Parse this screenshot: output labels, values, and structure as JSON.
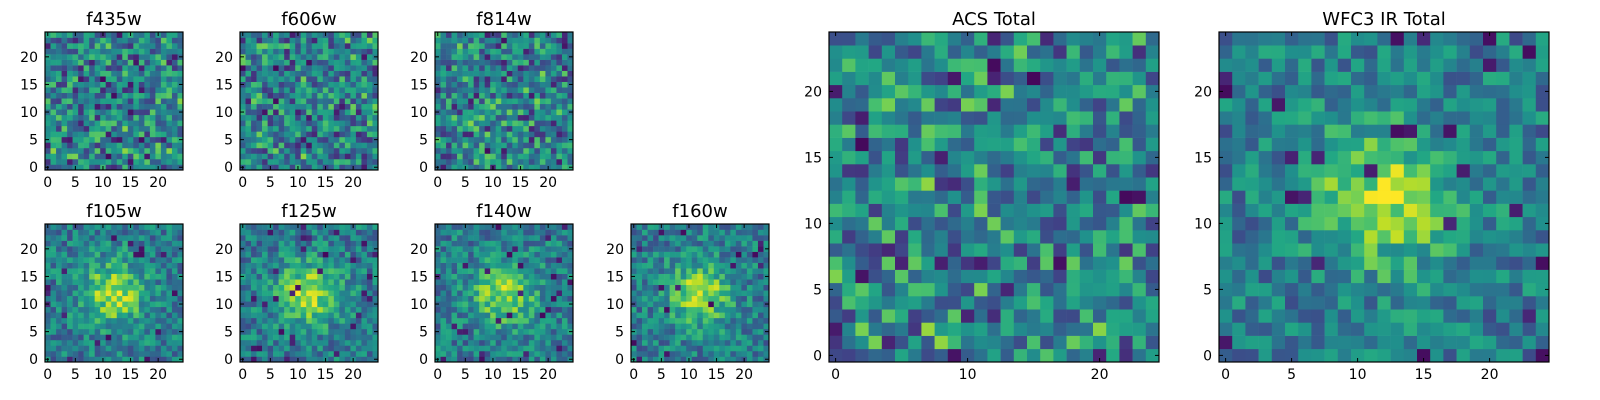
{
  "chart_data": [
    {
      "type": "heatmap",
      "title": "f435w",
      "grid_size": 25,
      "structure": "noise",
      "xticks": [
        "0",
        "5",
        "10",
        "15",
        "20"
      ],
      "yticks": [
        "0",
        "5",
        "10",
        "15",
        "20"
      ],
      "xlim": [
        0,
        25
      ],
      "ylim": [
        0,
        25
      ],
      "colormap": "viridis",
      "seed": 11
    },
    {
      "type": "heatmap",
      "title": "f606w",
      "grid_size": 25,
      "structure": "noise",
      "xticks": [
        "0",
        "5",
        "10",
        "15",
        "20"
      ],
      "yticks": [
        "0",
        "5",
        "10",
        "15",
        "20"
      ],
      "xlim": [
        0,
        25
      ],
      "ylim": [
        0,
        25
      ],
      "colormap": "viridis",
      "seed": 23
    },
    {
      "type": "heatmap",
      "title": "f814w",
      "grid_size": 25,
      "structure": "noise",
      "xticks": [
        "0",
        "5",
        "10",
        "15",
        "20"
      ],
      "yticks": [
        "0",
        "5",
        "10",
        "15",
        "20"
      ],
      "xlim": [
        0,
        25
      ],
      "ylim": [
        0,
        25
      ],
      "colormap": "viridis",
      "seed": 37
    },
    {
      "type": "heatmap",
      "title": "f105w",
      "grid_size": 25,
      "structure": "central-source",
      "xticks": [
        "0",
        "5",
        "10",
        "15",
        "20"
      ],
      "yticks": [
        "0",
        "5",
        "10",
        "15",
        "20"
      ],
      "xlim": [
        0,
        25
      ],
      "ylim": [
        0,
        25
      ],
      "colormap": "viridis",
      "seed": 41
    },
    {
      "type": "heatmap",
      "title": "f125w",
      "grid_size": 25,
      "structure": "central-source",
      "xticks": [
        "0",
        "5",
        "10",
        "15",
        "20"
      ],
      "yticks": [
        "0",
        "5",
        "10",
        "15",
        "20"
      ],
      "xlim": [
        0,
        25
      ],
      "ylim": [
        0,
        25
      ],
      "colormap": "viridis",
      "seed": 53
    },
    {
      "type": "heatmap",
      "title": "f140w",
      "grid_size": 25,
      "structure": "central-source",
      "xticks": [
        "0",
        "5",
        "10",
        "15",
        "20"
      ],
      "yticks": [
        "0",
        "5",
        "10",
        "15",
        "20"
      ],
      "xlim": [
        0,
        25
      ],
      "ylim": [
        0,
        25
      ],
      "colormap": "viridis",
      "seed": 67
    },
    {
      "type": "heatmap",
      "title": "f160w",
      "grid_size": 25,
      "structure": "central-source",
      "xticks": [
        "0",
        "5",
        "10",
        "15",
        "20"
      ],
      "yticks": [
        "0",
        "5",
        "10",
        "15",
        "20"
      ],
      "xlim": [
        0,
        25
      ],
      "ylim": [
        0,
        25
      ],
      "colormap": "viridis",
      "seed": 79
    },
    {
      "type": "heatmap",
      "title": "ACS Total",
      "grid_size": 25,
      "structure": "noise",
      "xticks": [
        "0",
        "10",
        "20"
      ],
      "yticks": [
        "0",
        "5",
        "10",
        "15",
        "20"
      ],
      "xlim": [
        0,
        25
      ],
      "ylim": [
        0,
        25
      ],
      "colormap": "viridis",
      "seed": 97
    },
    {
      "type": "heatmap",
      "title": "WFC3 IR Total",
      "grid_size": 25,
      "structure": "central-source",
      "xticks": [
        "0",
        "5",
        "10",
        "15",
        "20"
      ],
      "yticks": [
        "0",
        "5",
        "10",
        "15",
        "20"
      ],
      "xlim": [
        0,
        25
      ],
      "ylim": [
        0,
        25
      ],
      "colormap": "viridis",
      "seed": 113
    }
  ]
}
